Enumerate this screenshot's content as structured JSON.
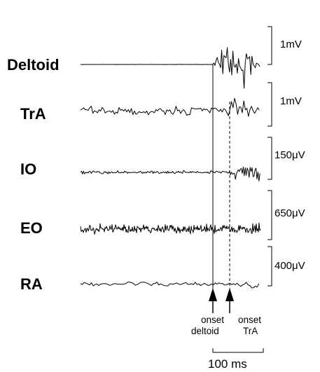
{
  "chart_data": {
    "type": "line",
    "x_unit": "ms",
    "channels": [
      {
        "name": "Deltoid",
        "scale": "1mV"
      },
      {
        "name": "TrA",
        "scale": "1mV"
      },
      {
        "name": "IO",
        "scale": "150μV"
      },
      {
        "name": "EO",
        "scale": "650μV"
      },
      {
        "name": "RA",
        "scale": "400μV"
      }
    ],
    "onset_markers": [
      {
        "line1": "onset",
        "line2": "deltoid",
        "style": "solid"
      },
      {
        "line1": "onset",
        "line2": "TrA",
        "style": "dashed"
      }
    ],
    "time_scale_bar": {
      "value": 100,
      "label": "100 ms"
    }
  }
}
